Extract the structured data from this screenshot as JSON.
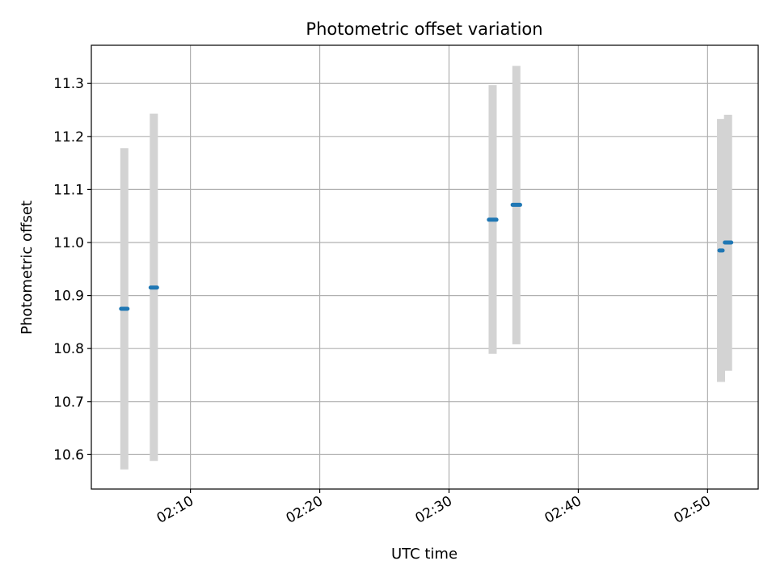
{
  "chart_data": {
    "type": "scatter",
    "title": "Photometric offset variation",
    "xlabel": "UTC time",
    "ylabel": "Photometric offset",
    "xlim": [
      "02:02:20",
      "02:53:55"
    ],
    "ylim": [
      10.535,
      11.372
    ],
    "x_ticks": [
      "02:10",
      "02:20",
      "02:30",
      "02:40",
      "02:50"
    ],
    "y_ticks": [
      "10.6",
      "10.7",
      "10.8",
      "10.9",
      "11.0",
      "11.1",
      "11.2",
      "11.3"
    ],
    "grid": true,
    "legend": "none",
    "colors": {
      "marker": "#1f77b4",
      "errorbar": "#d3d3d3",
      "grid": "#b0b0b0"
    },
    "points": [
      {
        "x_start": "02:04:38",
        "x_end": "02:05:08",
        "y": 10.875,
        "y_low": 10.572,
        "y_high": 11.178
      },
      {
        "x_start": "02:06:55",
        "x_end": "02:07:25",
        "y": 10.915,
        "y_low": 10.588,
        "y_high": 11.243
      },
      {
        "x_start": "02:33:05",
        "x_end": "02:33:40",
        "y": 11.043,
        "y_low": 10.79,
        "y_high": 11.297
      },
      {
        "x_start": "02:34:55",
        "x_end": "02:35:30",
        "y": 11.071,
        "y_low": 10.808,
        "y_high": 11.333
      },
      {
        "x_start": "02:50:55",
        "x_end": "02:51:10",
        "y": 10.985,
        "y_low": 10.737,
        "y_high": 11.233
      },
      {
        "x_start": "02:51:20",
        "x_end": "02:51:50",
        "y": 11.0,
        "y_low": 10.758,
        "y_high": 11.241
      }
    ]
  }
}
